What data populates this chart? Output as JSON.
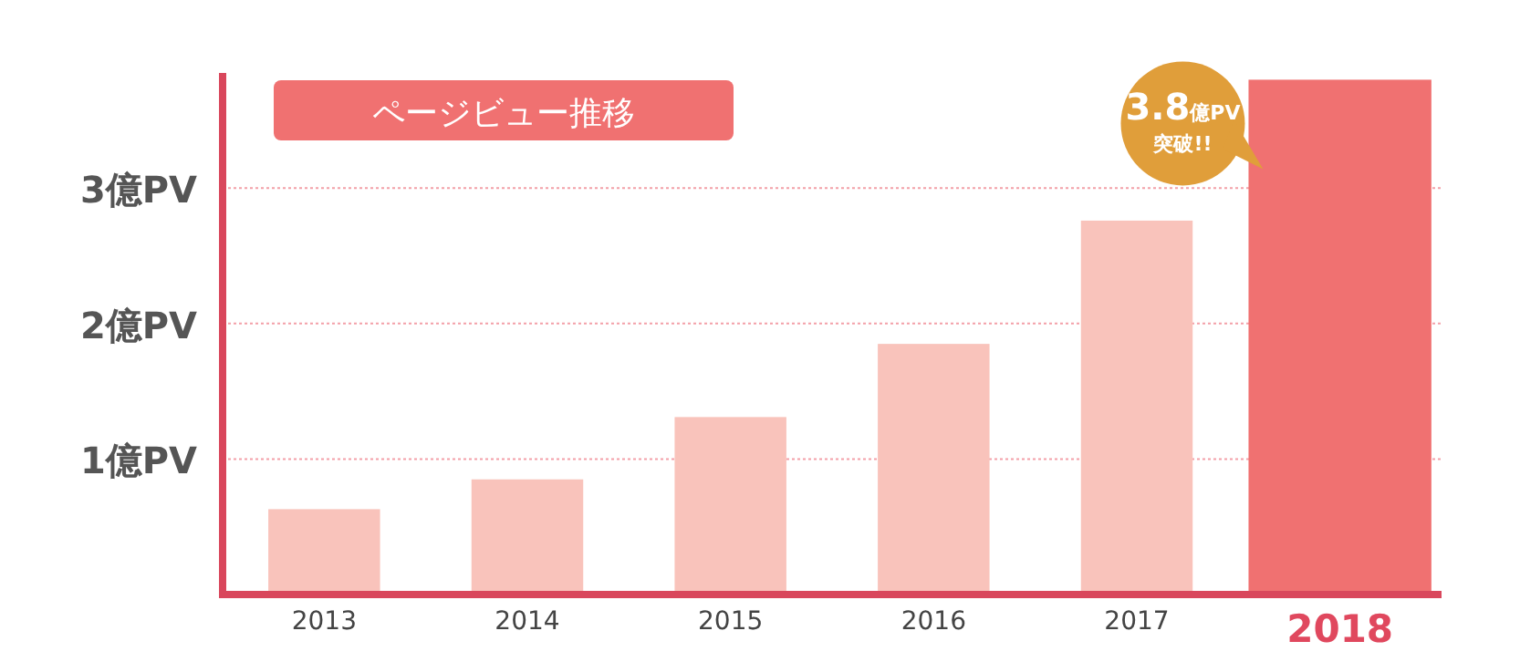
{
  "chart_data": {
    "type": "bar",
    "title": "ページビュー推移",
    "categories": [
      "2013",
      "2014",
      "2015",
      "2016",
      "2017",
      "2018"
    ],
    "values": [
      0.63,
      0.85,
      1.31,
      1.85,
      2.76,
      3.8
    ],
    "colors": [
      "#f9c3bb",
      "#f9c3bb",
      "#f9c3bb",
      "#f9c3bb",
      "#f9c3bb",
      "#f07171"
    ],
    "ylim": [
      0,
      3.85
    ],
    "yticks": [
      {
        "value": 1,
        "label": "1億PV"
      },
      {
        "value": 2,
        "label": "2億PV"
      },
      {
        "value": 3,
        "label": "3億PV"
      }
    ],
    "grid": "y",
    "annotations": [
      {
        "text": "3.8億PV突破!!",
        "x": "2018",
        "y": 3.8
      }
    ]
  }
}
